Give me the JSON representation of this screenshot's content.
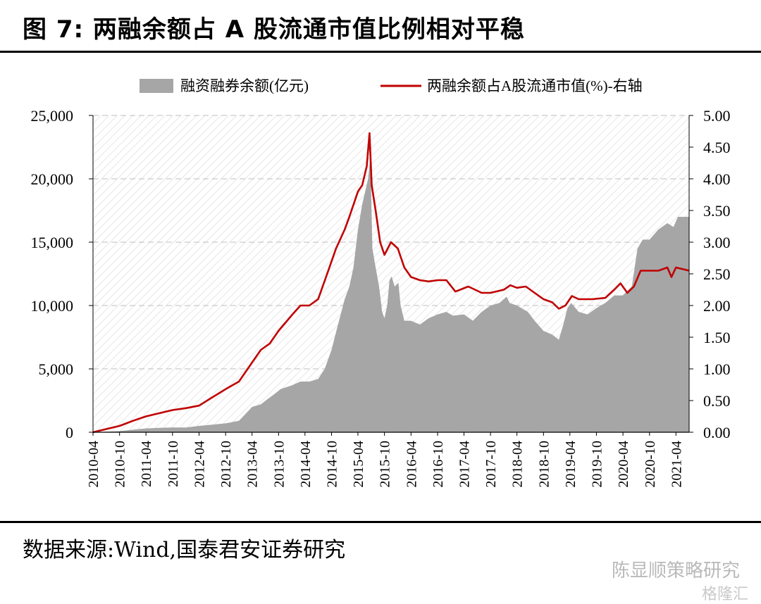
{
  "figure": {
    "title": "图 7:  两融余额占 A 股流通市值比例相对平稳",
    "source": "数据来源:Wind,国泰君安证券研究",
    "watermark": "陈显顺策略研究",
    "watermark2": "格隆汇"
  },
  "chart_data": {
    "type": "area",
    "grid": true,
    "legend_position": "top",
    "x_tick_labels": [
      "2010-04",
      "2010-10",
      "2011-04",
      "2011-10",
      "2012-04",
      "2012-10",
      "2013-04",
      "2013-10",
      "2014-04",
      "2014-10",
      "2015-04",
      "2015-10",
      "2016-04",
      "2016-10",
      "2017-04",
      "2017-10",
      "2018-04",
      "2018-10",
      "2019-04",
      "2019-10",
      "2020-04",
      "2020-10",
      "2021-04"
    ],
    "y_left": {
      "ylim": [
        0,
        25000
      ],
      "ticks": [
        0,
        5000,
        10000,
        15000,
        20000,
        25000
      ],
      "tick_labels": [
        "0",
        "5,000",
        "10,000",
        "15,000",
        "20,000",
        "25,000"
      ]
    },
    "y_right": {
      "ylim": [
        0,
        5
      ],
      "ticks": [
        0,
        0.5,
        1,
        1.5,
        2,
        2.5,
        3,
        3.5,
        4,
        4.5,
        5
      ],
      "tick_labels": [
        "0.00",
        "0.50",
        "1.00",
        "1.50",
        "2.00",
        "2.50",
        "3.00",
        "3.50",
        "4.00",
        "4.50",
        "5.00"
      ]
    },
    "series": [
      {
        "name": "融资融券余额(亿元)",
        "kind": "area",
        "axis": "left",
        "color": "#a6a6a6",
        "points": [
          [
            "2010-04-01",
            0
          ],
          [
            "2010-07-01",
            40
          ],
          [
            "2010-10-01",
            90
          ],
          [
            "2011-01-01",
            200
          ],
          [
            "2011-04-01",
            300
          ],
          [
            "2011-07-01",
            350
          ],
          [
            "2011-10-01",
            380
          ],
          [
            "2012-01-01",
            370
          ],
          [
            "2012-04-01",
            500
          ],
          [
            "2012-07-01",
            600
          ],
          [
            "2012-10-01",
            700
          ],
          [
            "2013-01-01",
            900
          ],
          [
            "2013-02-20",
            1500
          ],
          [
            "2013-04-01",
            2000
          ],
          [
            "2013-06-01",
            2200
          ],
          [
            "2013-07-15",
            2600
          ],
          [
            "2013-09-01",
            3000
          ],
          [
            "2013-10-15",
            3400
          ],
          [
            "2014-01-01",
            3700
          ],
          [
            "2014-03-01",
            4000
          ],
          [
            "2014-05-01",
            4000
          ],
          [
            "2014-07-01",
            4200
          ],
          [
            "2014-08-15",
            5000
          ],
          [
            "2014-10-01",
            6500
          ],
          [
            "2014-11-15",
            8500
          ],
          [
            "2014-12-31",
            10500
          ],
          [
            "2015-02-01",
            11500
          ],
          [
            "2015-03-01",
            13000
          ],
          [
            "2015-04-01",
            16000
          ],
          [
            "2015-05-01",
            18000
          ],
          [
            "2015-06-10",
            20000
          ],
          [
            "2015-06-25",
            21700
          ],
          [
            "2015-07-01",
            19000
          ],
          [
            "2015-07-10",
            14500
          ],
          [
            "2015-08-01",
            13000
          ],
          [
            "2015-08-25",
            11500
          ],
          [
            "2015-09-15",
            9500
          ],
          [
            "2015-10-01",
            9000
          ],
          [
            "2015-10-20",
            10000
          ],
          [
            "2015-11-05",
            12000
          ],
          [
            "2015-11-20",
            12300
          ],
          [
            "2015-12-10",
            11500
          ],
          [
            "2016-01-05",
            11800
          ],
          [
            "2016-01-20",
            10000
          ],
          [
            "2016-02-15",
            8800
          ],
          [
            "2016-04-01",
            8800
          ],
          [
            "2016-06-01",
            8500
          ],
          [
            "2016-08-01",
            9000
          ],
          [
            "2016-10-01",
            9300
          ],
          [
            "2016-12-01",
            9500
          ],
          [
            "2017-01-15",
            9200
          ],
          [
            "2017-04-01",
            9300
          ],
          [
            "2017-06-01",
            8800
          ],
          [
            "2017-08-01",
            9500
          ],
          [
            "2017-10-01",
            10000
          ],
          [
            "2017-12-01",
            10200
          ],
          [
            "2018-01-20",
            10700
          ],
          [
            "2018-02-10",
            10200
          ],
          [
            "2018-04-01",
            10000
          ],
          [
            "2018-06-15",
            9500
          ],
          [
            "2018-08-01",
            8800
          ],
          [
            "2018-10-01",
            8000
          ],
          [
            "2018-12-01",
            7700
          ],
          [
            "2019-01-15",
            7300
          ],
          [
            "2019-02-15",
            8500
          ],
          [
            "2019-03-15",
            9800
          ],
          [
            "2019-04-10",
            10200
          ],
          [
            "2019-06-01",
            9500
          ],
          [
            "2019-08-01",
            9300
          ],
          [
            "2019-10-01",
            9800
          ],
          [
            "2019-12-01",
            10200
          ],
          [
            "2020-02-01",
            10800
          ],
          [
            "2020-04-01",
            10800
          ],
          [
            "2020-06-01",
            11500
          ],
          [
            "2020-07-10",
            14500
          ],
          [
            "2020-08-15",
            15200
          ],
          [
            "2020-10-01",
            15200
          ],
          [
            "2020-12-01",
            16000
          ],
          [
            "2021-02-01",
            16500
          ],
          [
            "2021-03-15",
            16200
          ],
          [
            "2021-04-15",
            17000
          ],
          [
            "2021-07-01",
            17000
          ]
        ]
      },
      {
        "name": "两融余额占A股流通市值(%)-右轴",
        "kind": "line",
        "axis": "right",
        "color": "#c00000",
        "points": [
          [
            "2010-04-01",
            0
          ],
          [
            "2010-07-01",
            0.05
          ],
          [
            "2010-10-01",
            0.1
          ],
          [
            "2011-01-01",
            0.18
          ],
          [
            "2011-04-01",
            0.25
          ],
          [
            "2011-07-01",
            0.3
          ],
          [
            "2011-10-01",
            0.35
          ],
          [
            "2012-01-01",
            0.38
          ],
          [
            "2012-04-01",
            0.42
          ],
          [
            "2012-07-01",
            0.55
          ],
          [
            "2012-10-01",
            0.68
          ],
          [
            "2013-01-01",
            0.8
          ],
          [
            "2013-04-01",
            1.1
          ],
          [
            "2013-06-01",
            1.3
          ],
          [
            "2013-08-01",
            1.4
          ],
          [
            "2013-10-01",
            1.6
          ],
          [
            "2014-01-01",
            1.85
          ],
          [
            "2014-03-01",
            2.0
          ],
          [
            "2014-05-01",
            2.0
          ],
          [
            "2014-07-01",
            2.1
          ],
          [
            "2014-09-01",
            2.5
          ],
          [
            "2014-11-01",
            2.9
          ],
          [
            "2014-12-31",
            3.2
          ],
          [
            "2015-02-01",
            3.4
          ],
          [
            "2015-04-01",
            3.8
          ],
          [
            "2015-05-01",
            3.9
          ],
          [
            "2015-06-01",
            4.2
          ],
          [
            "2015-06-20",
            4.72
          ],
          [
            "2015-07-05",
            3.9
          ],
          [
            "2015-08-01",
            3.5
          ],
          [
            "2015-09-01",
            3.0
          ],
          [
            "2015-10-01",
            2.8
          ],
          [
            "2015-11-15",
            3.0
          ],
          [
            "2016-01-01",
            2.9
          ],
          [
            "2016-02-15",
            2.6
          ],
          [
            "2016-04-01",
            2.45
          ],
          [
            "2016-06-01",
            2.4
          ],
          [
            "2016-08-01",
            2.38
          ],
          [
            "2016-10-01",
            2.4
          ],
          [
            "2016-12-01",
            2.4
          ],
          [
            "2017-02-01",
            2.22
          ],
          [
            "2017-05-01",
            2.3
          ],
          [
            "2017-08-01",
            2.2
          ],
          [
            "2017-10-01",
            2.2
          ],
          [
            "2018-01-01",
            2.25
          ],
          [
            "2018-02-15",
            2.32
          ],
          [
            "2018-04-01",
            2.28
          ],
          [
            "2018-06-01",
            2.3
          ],
          [
            "2018-08-01",
            2.2
          ],
          [
            "2018-10-01",
            2.1
          ],
          [
            "2018-12-01",
            2.05
          ],
          [
            "2019-01-15",
            1.95
          ],
          [
            "2019-03-01",
            2.0
          ],
          [
            "2019-04-15",
            2.15
          ],
          [
            "2019-06-01",
            2.1
          ],
          [
            "2019-09-01",
            2.1
          ],
          [
            "2019-12-01",
            2.12
          ],
          [
            "2020-02-01",
            2.25
          ],
          [
            "2020-03-15",
            2.35
          ],
          [
            "2020-05-01",
            2.2
          ],
          [
            "2020-06-15",
            2.3
          ],
          [
            "2020-08-01",
            2.55
          ],
          [
            "2020-10-01",
            2.55
          ],
          [
            "2020-12-01",
            2.55
          ],
          [
            "2021-02-01",
            2.6
          ],
          [
            "2021-03-01",
            2.45
          ],
          [
            "2021-04-01",
            2.6
          ],
          [
            "2021-07-01",
            2.55
          ]
        ]
      }
    ]
  }
}
